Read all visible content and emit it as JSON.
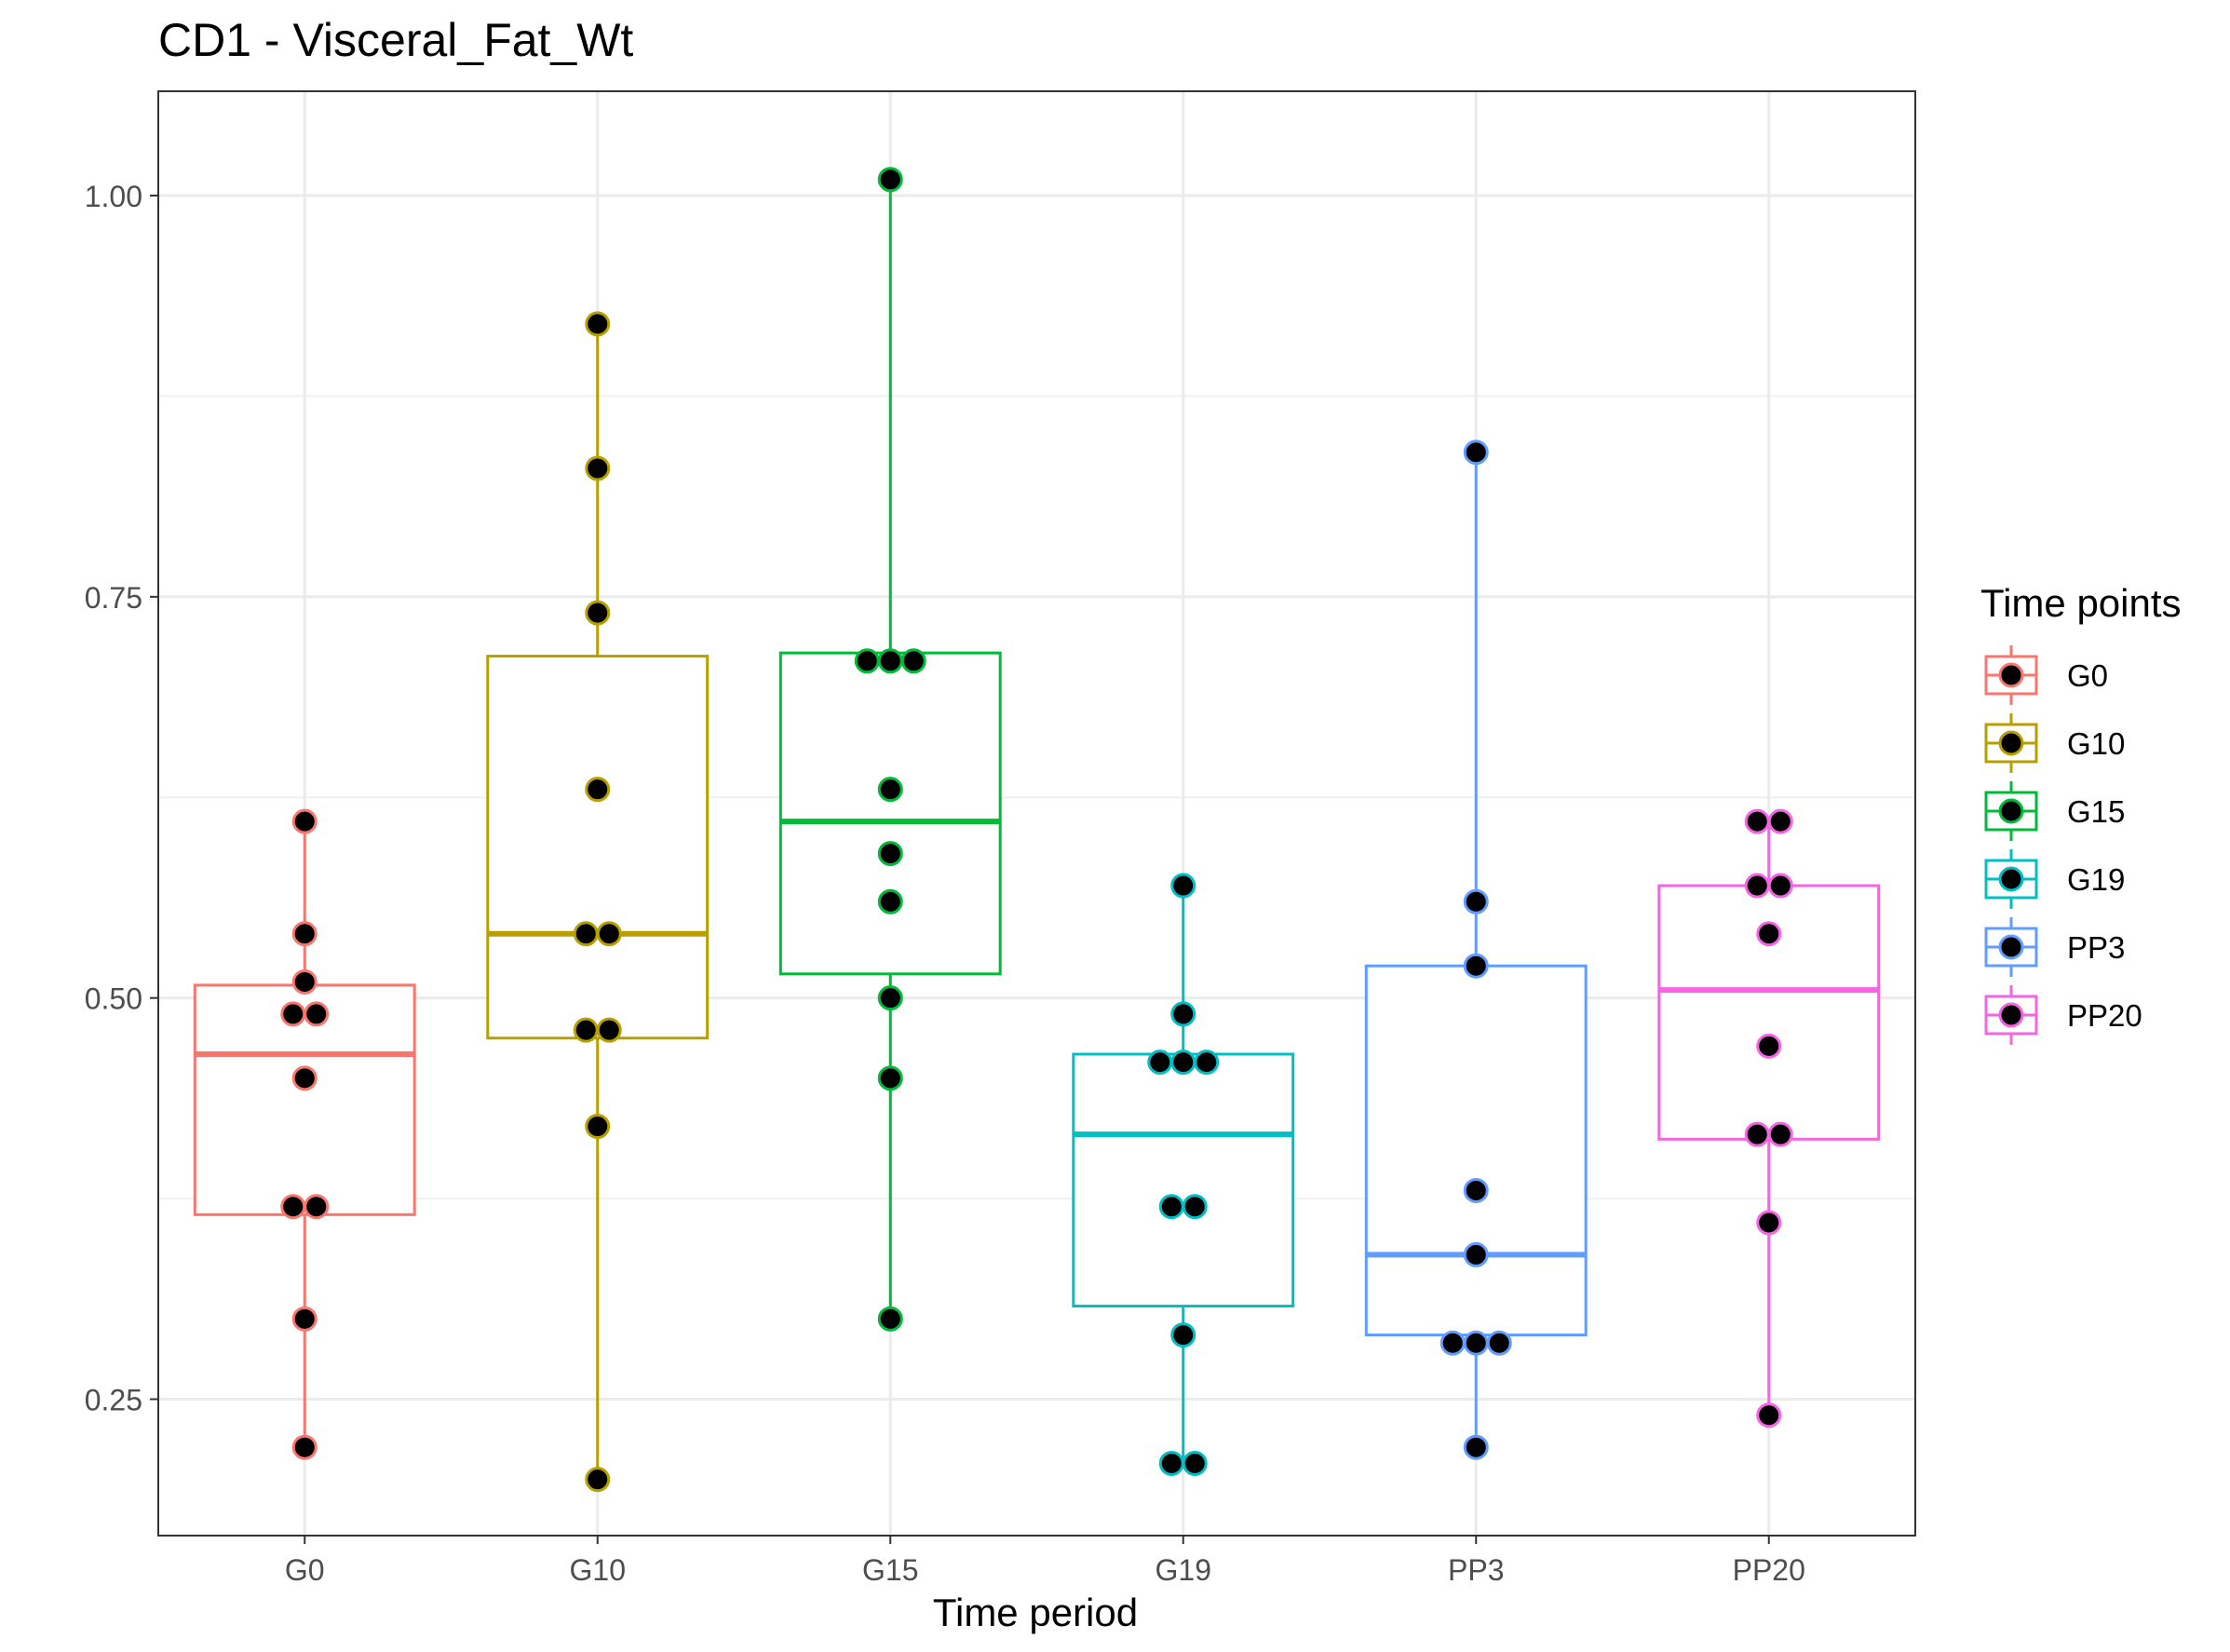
{
  "chart_data": {
    "type": "box",
    "title": "CD1 - Visceral_Fat_Wt",
    "xlabel": "Time period",
    "ylabel": "",
    "ylim": [
      0.165,
      1.065
    ],
    "yticks": [
      0.25,
      0.5,
      0.75,
      1.0
    ],
    "ytick_labels": [
      "0.25",
      "0.50",
      "0.75",
      "1.00"
    ],
    "grid": true,
    "legend": {
      "title": "Time points",
      "position": "right"
    },
    "categories": [
      "G0",
      "G10",
      "G15",
      "G19",
      "PP3",
      "PP20"
    ],
    "colors": [
      "#F8766D",
      "#B79F00",
      "#00BA38",
      "#00BFC4",
      "#619CFF",
      "#F564E3"
    ],
    "series": [
      {
        "name": "G0",
        "box": {
          "min": 0.22,
          "q1": 0.365,
          "median": 0.465,
          "q3": 0.508,
          "max": 0.61
        },
        "points": [
          0.61,
          0.54,
          0.51,
          0.49,
          0.49,
          0.45,
          0.37,
          0.37,
          0.3,
          0.22
        ]
      },
      {
        "name": "G10",
        "box": {
          "min": 0.2,
          "q1": 0.475,
          "median": 0.54,
          "q3": 0.713,
          "max": 0.92
        },
        "points": [
          0.92,
          0.83,
          0.74,
          0.63,
          0.54,
          0.54,
          0.48,
          0.48,
          0.42,
          0.2
        ]
      },
      {
        "name": "G15",
        "box": {
          "min": 0.3,
          "q1": 0.515,
          "median": 0.61,
          "q3": 0.715,
          "max": 1.01
        },
        "points": [
          1.01,
          0.71,
          0.71,
          0.71,
          0.63,
          0.59,
          0.56,
          0.5,
          0.45,
          0.3
        ]
      },
      {
        "name": "G19",
        "box": {
          "min": 0.21,
          "q1": 0.308,
          "median": 0.415,
          "q3": 0.465,
          "max": 0.57
        },
        "points": [
          0.57,
          0.49,
          0.46,
          0.46,
          0.46,
          0.37,
          0.37,
          0.29,
          0.21,
          0.21
        ]
      },
      {
        "name": "PP3",
        "box": {
          "min": 0.22,
          "q1": 0.29,
          "median": 0.34,
          "q3": 0.52,
          "max": 0.84
        },
        "points": [
          0.84,
          0.56,
          0.52,
          0.38,
          0.34,
          0.285,
          0.285,
          0.285,
          0.22
        ]
      },
      {
        "name": "PP20",
        "box": {
          "min": 0.24,
          "q1": 0.412,
          "median": 0.505,
          "q3": 0.57,
          "max": 0.61
        },
        "points": [
          0.61,
          0.61,
          0.57,
          0.57,
          0.54,
          0.47,
          0.415,
          0.415,
          0.36,
          0.24
        ]
      }
    ]
  }
}
